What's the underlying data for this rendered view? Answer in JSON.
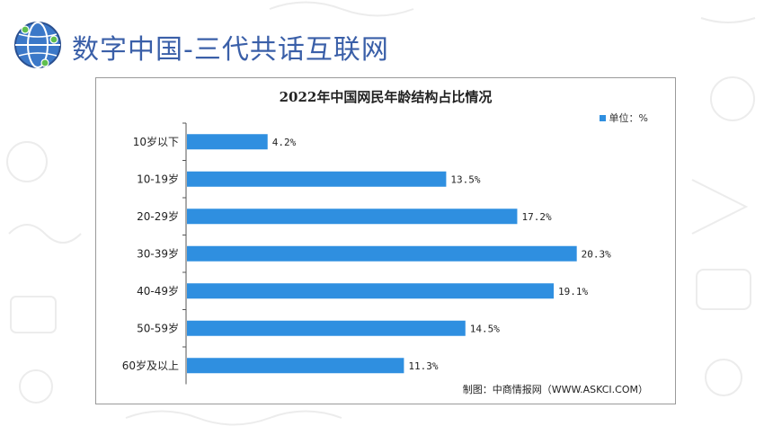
{
  "slide": {
    "title": "数字中国-三代共话互联网"
  },
  "colors": {
    "title": "#3a5fa8",
    "bar": "#2f8fe0"
  },
  "icons": {
    "logo": "globe-network-icon"
  },
  "chart_data": {
    "type": "bar",
    "orientation": "horizontal",
    "title": "2022年中国网民年龄结构占比情况",
    "categories": [
      "10岁以下",
      "10-19岁",
      "20-29岁",
      "30-39岁",
      "40-49岁",
      "50-59岁",
      "60岁及以上"
    ],
    "values": [
      4.2,
      13.5,
      17.2,
      20.3,
      19.1,
      14.5,
      11.3
    ],
    "value_labels": [
      "4.2%",
      "13.5%",
      "17.2%",
      "20.3%",
      "19.1%",
      "14.5%",
      "11.3%"
    ],
    "legend": "单位：%",
    "legend_position": "top-right",
    "source": "制图：中商情报网（WWW.ASKCI.COM）",
    "xlim": [
      0,
      22
    ],
    "grid": false
  }
}
